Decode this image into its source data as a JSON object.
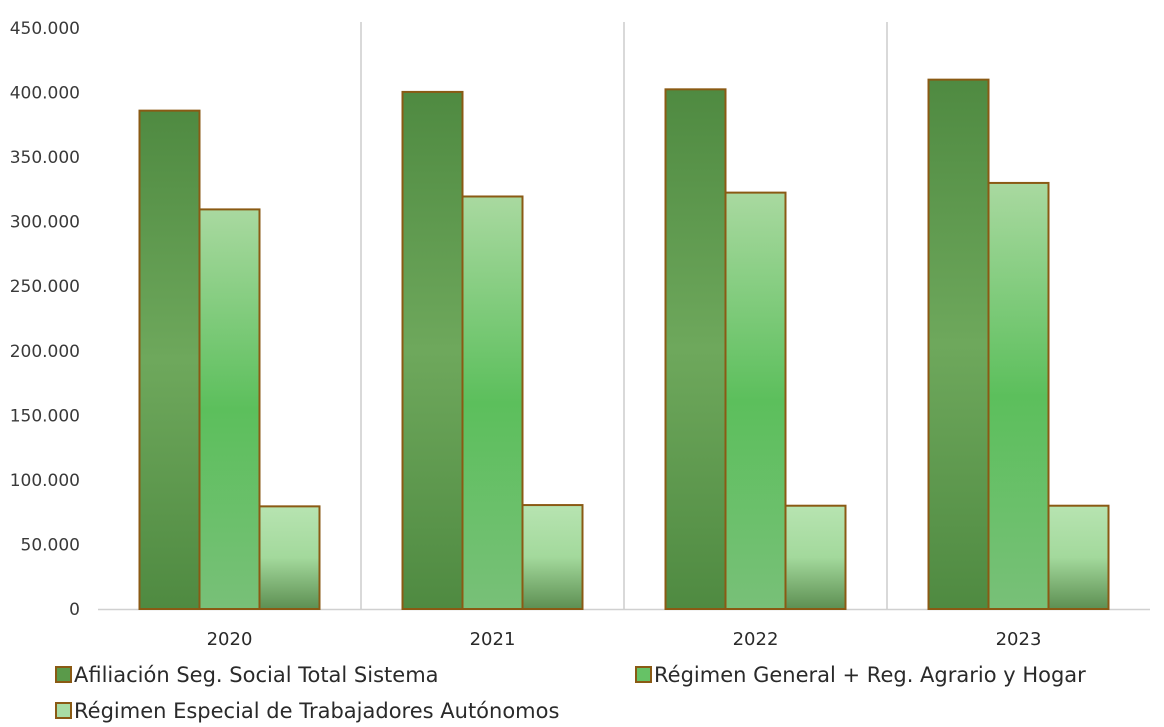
{
  "chart_data": {
    "type": "bar",
    "categories": [
      "2020",
      "2021",
      "2022",
      "2023"
    ],
    "series": [
      {
        "name": "Afiliación Seg. Social Total Sistema",
        "values": [
          386000,
          400500,
          402500,
          410000
        ],
        "color": "#5a9a4a"
      },
      {
        "name": "Régimen General + Reg. Agrario y Hogar",
        "values": [
          309500,
          319500,
          322500,
          330000
        ],
        "color": "#66c266"
      },
      {
        "name": "Régimen Especial de Trabajadores Autónomos",
        "values": [
          79500,
          80500,
          80000,
          80000
        ],
        "color": "#a8dca4"
      }
    ],
    "y_ticks": [
      "0",
      "50.000",
      "100.000",
      "150.000",
      "200.000",
      "250.000",
      "300.000",
      "350.000",
      "400.000",
      "450.000"
    ],
    "ylim": [
      0,
      450000
    ],
    "grid": false,
    "category_separators": true,
    "legend_position": "bottom",
    "bar_border_color": "#8a5a14",
    "title": "",
    "xlabel": "",
    "ylabel": ""
  }
}
